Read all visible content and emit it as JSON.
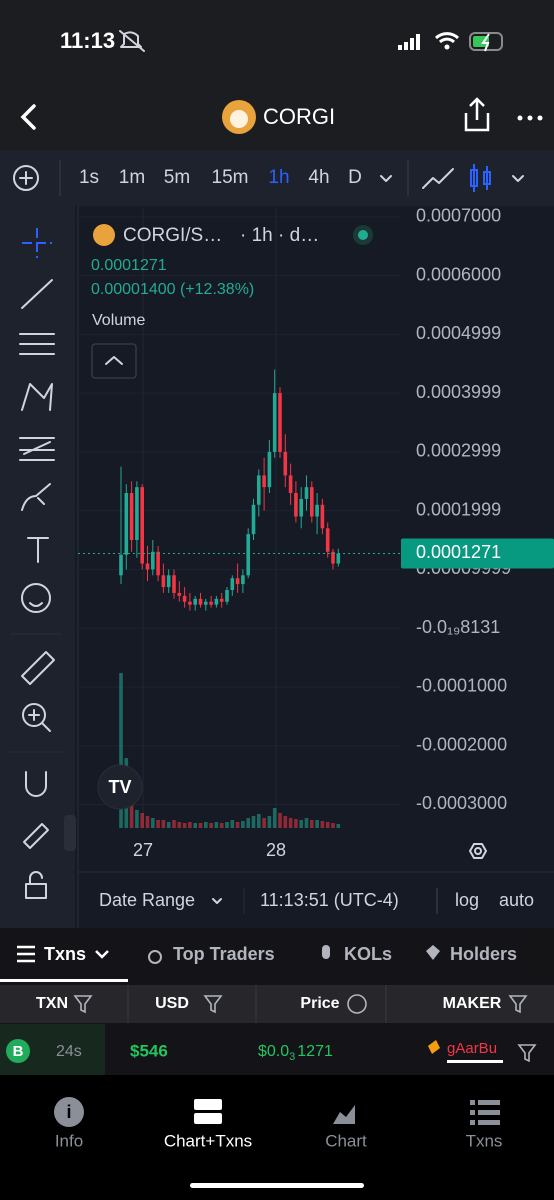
{
  "status": {
    "time": "11:13"
  },
  "header": {
    "title": "CORGI"
  },
  "toolbar": {
    "intervals": [
      "1s",
      "1m",
      "5m",
      "15m",
      "1h",
      "4h",
      "D"
    ],
    "active": 4
  },
  "chart": {
    "legend": {
      "symbol": "CORGI/S…",
      "interval": "· 1h · d…",
      "price": "0.0001271",
      "change": "0.00001400 (+12.38%)",
      "volume": "Volume"
    },
    "ylim": [
      -0.00034,
      0.000715
    ],
    "yticks": [
      {
        "value": 0.0007,
        "label": "0.0007000"
      },
      {
        "value": 0.0006,
        "label": "0.0006000"
      },
      0.0004999,
      0.0003999,
      0.0002999,
      0.0001999,
      9.999e-05,
      {
        "value": -8.131e-21,
        "label": "-0.0₁₉8131"
      },
      {
        "value": -0.0001,
        "label": "-0.0001000"
      },
      {
        "value": -0.0002,
        "label": "-0.0002000"
      },
      {
        "value": -0.0003,
        "label": "-0.0003000"
      }
    ],
    "last_price": 0.0001271,
    "days": [
      "27",
      "28"
    ],
    "candles": [
      {
        "o": 9e-05,
        "h": 0.000275,
        "l": 7.5e-05,
        "c": 0.000125
      },
      {
        "o": 0.000125,
        "h": 0.000245,
        "l": 0.0001,
        "c": 0.00023
      },
      {
        "o": 0.00023,
        "h": 0.00025,
        "l": 0.00013,
        "c": 0.00015
      },
      {
        "o": 0.00015,
        "h": 0.00025,
        "l": 0.00012,
        "c": 0.00024
      },
      {
        "o": 0.00024,
        "h": 0.000245,
        "l": 0.0001,
        "c": 0.00011
      },
      {
        "o": 0.00011,
        "h": 0.00014,
        "l": 8e-05,
        "c": 0.0001
      },
      {
        "o": 0.0001,
        "h": 0.00015,
        "l": 9e-05,
        "c": 0.00013
      },
      {
        "o": 0.00013,
        "h": 0.00014,
        "l": 8e-05,
        "c": 9e-05
      },
      {
        "o": 9e-05,
        "h": 0.00011,
        "l": 6e-05,
        "c": 7e-05
      },
      {
        "o": 7e-05,
        "h": 0.0001,
        "l": 6e-05,
        "c": 9e-05
      },
      {
        "o": 9e-05,
        "h": 0.0001,
        "l": 5e-05,
        "c": 6e-05
      },
      {
        "o": 6e-05,
        "h": 8e-05,
        "l": 4.5e-05,
        "c": 5.5e-05
      },
      {
        "o": 5.5e-05,
        "h": 7e-05,
        "l": 3.5e-05,
        "c": 4.5e-05
      },
      {
        "o": 4.5e-05,
        "h": 6e-05,
        "l": 3e-05,
        "c": 4e-05
      },
      {
        "o": 4e-05,
        "h": 5.5e-05,
        "l": 3e-05,
        "c": 5e-05
      },
      {
        "o": 5e-05,
        "h": 6e-05,
        "l": 3.5e-05,
        "c": 4e-05
      },
      {
        "o": 4e-05,
        "h": 5e-05,
        "l": 3e-05,
        "c": 4.5e-05
      },
      {
        "o": 4.5e-05,
        "h": 5.5e-05,
        "l": 3.5e-05,
        "c": 4e-05
      },
      {
        "o": 4e-05,
        "h": 5.5e-05,
        "l": 3.5e-05,
        "c": 5e-05
      },
      {
        "o": 5e-05,
        "h": 6e-05,
        "l": 3.5e-05,
        "c": 4.5e-05
      },
      {
        "o": 4.5e-05,
        "h": 7e-05,
        "l": 4e-05,
        "c": 6.5e-05
      },
      {
        "o": 6.5e-05,
        "h": 9e-05,
        "l": 5.5e-05,
        "c": 8.5e-05
      },
      {
        "o": 8.5e-05,
        "h": 0.00011,
        "l": 6e-05,
        "c": 7.5e-05
      },
      {
        "o": 7.5e-05,
        "h": 0.0001,
        "l": 6e-05,
        "c": 9e-05
      },
      {
        "o": 9e-05,
        "h": 0.00017,
        "l": 8.5e-05,
        "c": 0.00016
      },
      {
        "o": 0.00016,
        "h": 0.00022,
        "l": 0.00015,
        "c": 0.00021
      },
      {
        "o": 0.00021,
        "h": 0.00027,
        "l": 0.00019,
        "c": 0.00026
      },
      {
        "o": 0.00026,
        "h": 0.00029,
        "l": 0.0002,
        "c": 0.00024
      },
      {
        "o": 0.00024,
        "h": 0.00032,
        "l": 0.00023,
        "c": 0.0003
      },
      {
        "o": 0.0003,
        "h": 0.00044,
        "l": 0.00029,
        "c": 0.0004
      },
      {
        "o": 0.0004,
        "h": 0.00041,
        "l": 0.00029,
        "c": 0.0003
      },
      {
        "o": 0.0003,
        "h": 0.00033,
        "l": 0.00024,
        "c": 0.00026
      },
      {
        "o": 0.00026,
        "h": 0.00028,
        "l": 0.00021,
        "c": 0.00023
      },
      {
        "o": 0.00023,
        "h": 0.00025,
        "l": 0.00018,
        "c": 0.00019
      },
      {
        "o": 0.00019,
        "h": 0.00024,
        "l": 0.00017,
        "c": 0.00022
      },
      {
        "o": 0.00022,
        "h": 0.00026,
        "l": 0.0002,
        "c": 0.00024
      },
      {
        "o": 0.00024,
        "h": 0.00025,
        "l": 0.00018,
        "c": 0.00019
      },
      {
        "o": 0.00019,
        "h": 0.00023,
        "l": 0.00016,
        "c": 0.00021
      },
      {
        "o": 0.00021,
        "h": 0.00022,
        "l": 0.00016,
        "c": 0.00017
      },
      {
        "o": 0.00017,
        "h": 0.00018,
        "l": 0.00012,
        "c": 0.00013
      },
      {
        "o": 0.00013,
        "h": 0.000135,
        "l": 0.0001,
        "c": 0.00011
      },
      {
        "o": 0.00011,
        "h": 0.000135,
        "l": 0.000105,
        "c": 0.0001271
      }
    ],
    "volumes": [
      155,
      70,
      25,
      18,
      15,
      12,
      10,
      8,
      8,
      6,
      8,
      6,
      5,
      6,
      5,
      5,
      6,
      5,
      6,
      5,
      6,
      8,
      6,
      7,
      10,
      12,
      14,
      10,
      12,
      20,
      15,
      12,
      10,
      9,
      8,
      10,
      8,
      8,
      7,
      6,
      5,
      4
    ]
  },
  "footer": {
    "date_range": "Date Range",
    "time": "11:13:51 (UTC-4)",
    "log": "log",
    "auto": "auto"
  },
  "tabs": [
    "Txns",
    "Top Traders",
    "KOLs",
    "Holders"
  ],
  "table": {
    "headers": [
      "TXN",
      "USD",
      "Price",
      "MAKER"
    ],
    "rows": [
      {
        "side": "B",
        "age": "24s",
        "usd": "$546",
        "price": {
          "lead": "$0.0",
          "zeros": "3",
          "digits": "1271"
        },
        "maker": "gAarBu"
      }
    ]
  },
  "nav": [
    "Info",
    "Chart+Txns",
    "Chart",
    "Txns"
  ]
}
